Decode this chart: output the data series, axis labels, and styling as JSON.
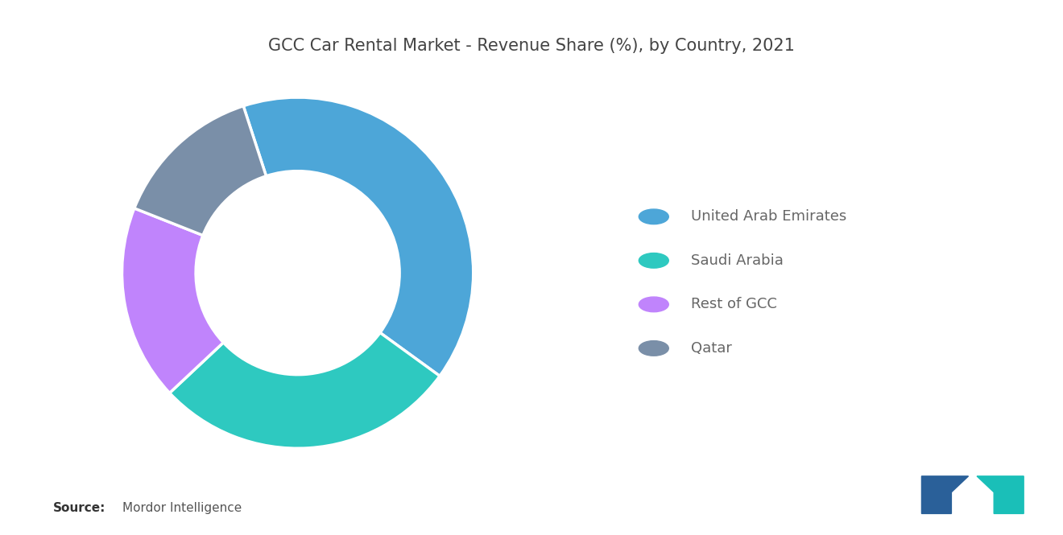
{
  "title": "GCC Car Rental Market - Revenue Share (%), by Country, 2021",
  "labels": [
    "United Arab Emirates",
    "Saudi Arabia",
    "Rest of GCC",
    "Qatar"
  ],
  "values": [
    40,
    28,
    18,
    14
  ],
  "colors": [
    "#4DA6D8",
    "#2EC9C0",
    "#C084FC",
    "#7A8FA8"
  ],
  "background_color": "#FFFFFF",
  "title_fontsize": 15,
  "legend_fontsize": 13,
  "source_bold": "Source:",
  "source_normal": "  Mordor Intelligence",
  "donut_width": 0.42,
  "start_angle": 108
}
